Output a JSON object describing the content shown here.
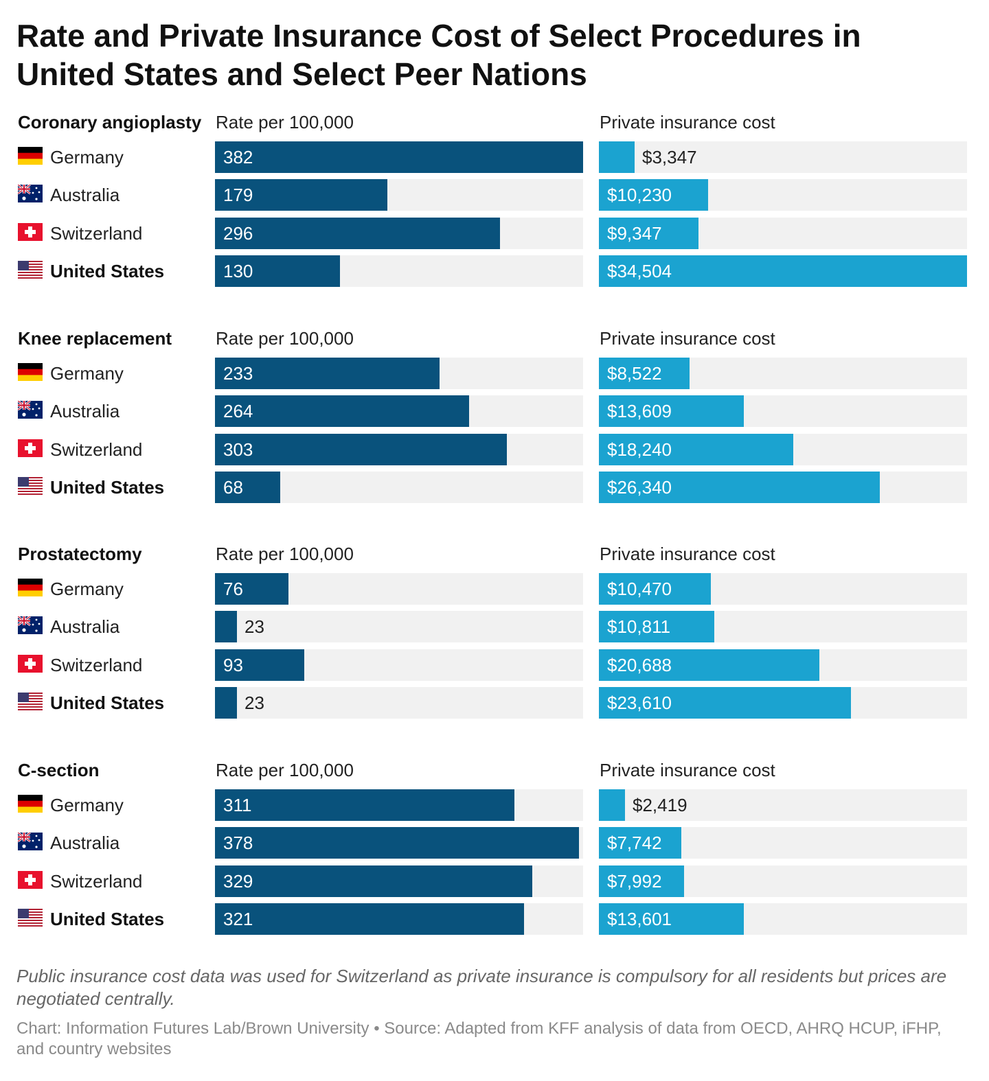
{
  "title": "Rate and Private Insurance Cost of Select Procedures in United States and Select Peer Nations",
  "chart_data": {
    "type": "bar",
    "orientation": "horizontal",
    "rate_header": "Rate per 100,000",
    "cost_header": "Private insurance cost",
    "rate_max": 382,
    "cost_max": 34504,
    "countries": [
      "Germany",
      "Australia",
      "Switzerland",
      "United States"
    ],
    "sections": [
      {
        "title": "Coronary angioplasty",
        "rows": [
          {
            "country": "Germany",
            "flag": "germany-flag",
            "rate": 382,
            "rate_label": "382",
            "cost": 3347,
            "cost_label": "$3,347"
          },
          {
            "country": "Australia",
            "flag": "australia-flag",
            "rate": 179,
            "rate_label": "179",
            "cost": 10230,
            "cost_label": "$10,230"
          },
          {
            "country": "Switzerland",
            "flag": "switzerland-flag",
            "rate": 296,
            "rate_label": "296",
            "cost": 9347,
            "cost_label": "$9,347"
          },
          {
            "country": "United States",
            "flag": "usa-flag",
            "rate": 130,
            "rate_label": "130",
            "cost": 34504,
            "cost_label": "$34,504"
          }
        ]
      },
      {
        "title": "Knee replacement",
        "rows": [
          {
            "country": "Germany",
            "flag": "germany-flag",
            "rate": 233,
            "rate_label": "233",
            "cost": 8522,
            "cost_label": "$8,522"
          },
          {
            "country": "Australia",
            "flag": "australia-flag",
            "rate": 264,
            "rate_label": "264",
            "cost": 13609,
            "cost_label": "$13,609"
          },
          {
            "country": "Switzerland",
            "flag": "switzerland-flag",
            "rate": 303,
            "rate_label": "303",
            "cost": 18240,
            "cost_label": "$18,240"
          },
          {
            "country": "United States",
            "flag": "usa-flag",
            "rate": 68,
            "rate_label": "68",
            "cost": 26340,
            "cost_label": "$26,340"
          }
        ]
      },
      {
        "title": "Prostatectomy",
        "rows": [
          {
            "country": "Germany",
            "flag": "germany-flag",
            "rate": 76,
            "rate_label": "76",
            "cost": 10470,
            "cost_label": "$10,470"
          },
          {
            "country": "Australia",
            "flag": "australia-flag",
            "rate": 23,
            "rate_label": "23",
            "cost": 10811,
            "cost_label": "$10,811"
          },
          {
            "country": "Switzerland",
            "flag": "switzerland-flag",
            "rate": 93,
            "rate_label": "93",
            "cost": 20688,
            "cost_label": "$20,688"
          },
          {
            "country": "United States",
            "flag": "usa-flag",
            "rate": 23,
            "rate_label": "23",
            "cost": 23610,
            "cost_label": "$23,610"
          }
        ]
      },
      {
        "title": "C-section",
        "rows": [
          {
            "country": "Germany",
            "flag": "germany-flag",
            "rate": 311,
            "rate_label": "311",
            "cost": 2419,
            "cost_label": "$2,419"
          },
          {
            "country": "Australia",
            "flag": "australia-flag",
            "rate": 378,
            "rate_label": "378",
            "cost": 7742,
            "cost_label": "$7,742"
          },
          {
            "country": "Switzerland",
            "flag": "switzerland-flag",
            "rate": 329,
            "rate_label": "329",
            "cost": 7992,
            "cost_label": "$7,992"
          },
          {
            "country": "United States",
            "flag": "usa-flag",
            "rate": 321,
            "rate_label": "321",
            "cost": 13601,
            "cost_label": "$13,601"
          }
        ]
      }
    ],
    "highlight_country": "United States"
  },
  "colors": {
    "rate_bar": "#09527c",
    "cost_bar": "#1ba3d0",
    "track": "#f1f1f1"
  },
  "footer": {
    "note": "Public insurance cost data was used for Switzerland as private insurance is compulsory for all residents but prices are negotiated centrally.",
    "credit": "Chart: Information Futures Lab/Brown University • Source: Adapted from KFF analysis of data from OECD, AHRQ HCUP, iFHP, and country websites"
  }
}
